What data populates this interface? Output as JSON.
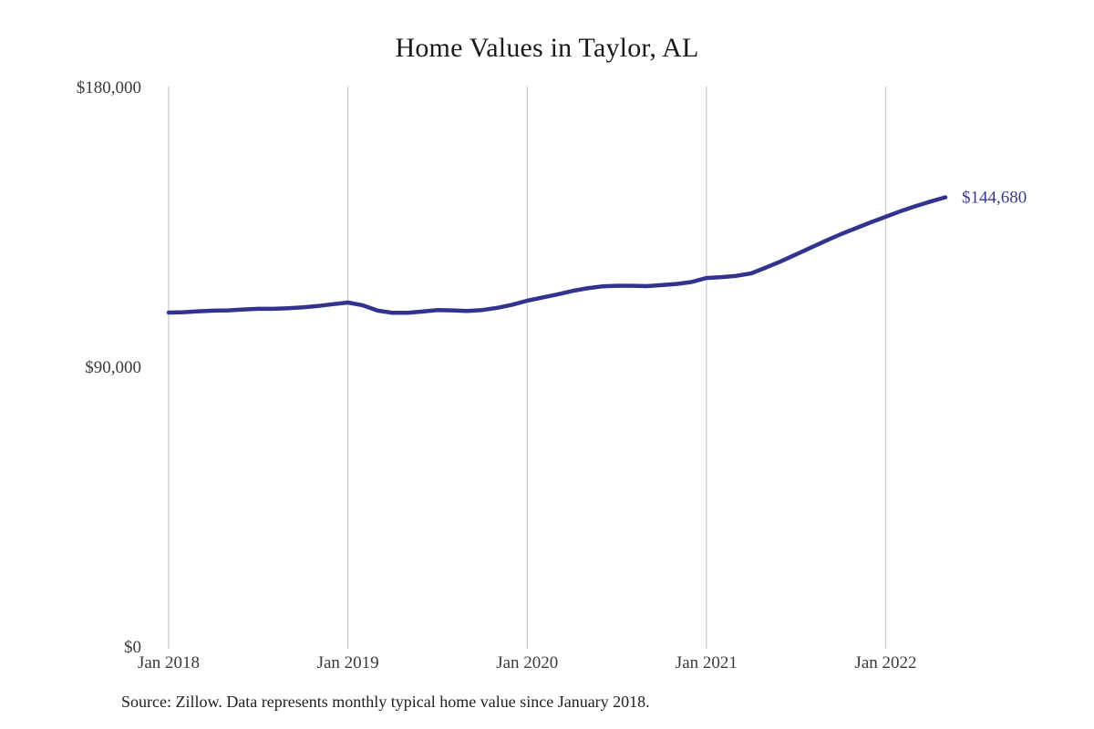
{
  "page": {
    "background": "#ffffff"
  },
  "chart_data": {
    "type": "line",
    "title": "Home Values in Taylor, AL",
    "source_note": "Source: Zillow. Data represents monthly typical home value since January 2018.",
    "x_interval": "monthly",
    "x_start": "Jan 2018",
    "x_tick_labels": [
      "Jan 2018",
      "Jan 2019",
      "Jan 2020",
      "Jan 2021",
      "Jan 2022"
    ],
    "x_tick_month_indices": [
      0,
      12,
      24,
      36,
      48
    ],
    "y_ticks": [
      {
        "value": 0,
        "label": "$0"
      },
      {
        "value": 90000,
        "label": "$90,000"
      },
      {
        "value": 180000,
        "label": "$180,000"
      }
    ],
    "ylim": [
      0,
      180000
    ],
    "grid": "vertical-only",
    "legend": "none",
    "end_label": "$144,680",
    "end_value": 144680,
    "series": [
      {
        "name": "Typical home value",
        "values": [
          107600,
          107700,
          108000,
          108200,
          108300,
          108600,
          108800,
          108800,
          109000,
          109300,
          109700,
          110300,
          110800,
          109900,
          108200,
          107500,
          107500,
          107900,
          108400,
          108300,
          108100,
          108400,
          109100,
          110100,
          111400,
          112400,
          113400,
          114500,
          115400,
          116000,
          116200,
          116200,
          116100,
          116400,
          116800,
          117400,
          118700,
          119000,
          119400,
          120200,
          122100,
          124100,
          126300,
          128500,
          130700,
          132800,
          134700,
          136600,
          138400,
          140200,
          141800,
          143300,
          144680
        ]
      }
    ],
    "colors": {
      "line": "#32338e",
      "grid": "#cccccc",
      "axis_text": "#3b3b3b",
      "title": "#1a1a1a",
      "end_label": "#373a93",
      "source": "#222222"
    }
  }
}
